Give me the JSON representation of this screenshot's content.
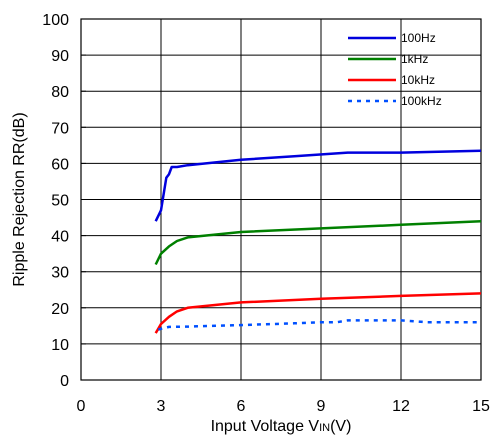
{
  "chart_data": {
    "type": "line",
    "xlabel_parts": [
      "Input Voltage V",
      "IN",
      "(V)"
    ],
    "ylabel": "Ripple Rejection RR(dB)",
    "xlim": [
      0,
      15
    ],
    "ylim": [
      0,
      100
    ],
    "x_ticks": [
      0,
      3,
      6,
      9,
      12,
      15
    ],
    "y_ticks": [
      0,
      10,
      20,
      30,
      40,
      50,
      60,
      70,
      80,
      90,
      100
    ],
    "grid": true,
    "legend_position": "top-right",
    "series": [
      {
        "name": "100Hz",
        "color": "#0000dd",
        "dash": "solid",
        "points": [
          [
            2.8,
            44
          ],
          [
            3.0,
            47
          ],
          [
            3.2,
            56
          ],
          [
            3.3,
            57
          ],
          [
            3.4,
            59
          ],
          [
            3.6,
            59
          ],
          [
            4,
            59.5
          ],
          [
            6,
            61
          ],
          [
            8,
            62
          ],
          [
            10,
            63
          ],
          [
            12,
            63
          ],
          [
            15,
            63.5
          ]
        ]
      },
      {
        "name": "1kHz",
        "color": "#008000",
        "dash": "solid",
        "points": [
          [
            2.8,
            32
          ],
          [
            3.0,
            35
          ],
          [
            3.3,
            37
          ],
          [
            3.6,
            38.5
          ],
          [
            4,
            39.5
          ],
          [
            6,
            41
          ],
          [
            9,
            42
          ],
          [
            12,
            43
          ],
          [
            15,
            44
          ]
        ]
      },
      {
        "name": "10kHz",
        "color": "#ff0000",
        "dash": "solid",
        "points": [
          [
            2.8,
            13
          ],
          [
            3.0,
            15.5
          ],
          [
            3.3,
            17.5
          ],
          [
            3.6,
            19
          ],
          [
            4,
            20
          ],
          [
            6,
            21.5
          ],
          [
            9,
            22.5
          ],
          [
            12,
            23.3
          ],
          [
            15,
            24
          ]
        ]
      },
      {
        "name": "100kHz",
        "color": "#0050ff",
        "dash": "dotted",
        "points": [
          [
            2.9,
            14
          ],
          [
            3.3,
            14.7
          ],
          [
            4,
            14.8
          ],
          [
            6,
            15.2
          ],
          [
            8,
            15.7
          ],
          [
            9,
            16
          ],
          [
            9.6,
            16
          ],
          [
            10,
            16.5
          ],
          [
            12,
            16.5
          ],
          [
            13,
            16
          ],
          [
            15,
            16
          ]
        ]
      }
    ]
  }
}
